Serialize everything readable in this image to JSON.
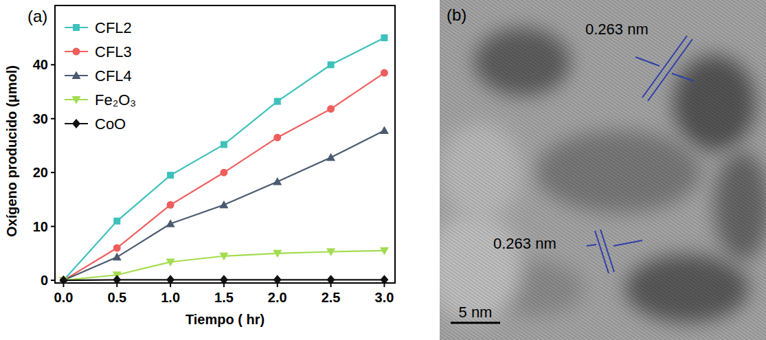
{
  "chart_data": {
    "type": "line",
    "label": "(a)",
    "x_label": "Tiempo ( hr)",
    "y_label": "Oxígeno producido (μmol)",
    "x": [
      0,
      0.5,
      1,
      1.5,
      2,
      2.5,
      3
    ],
    "series": [
      {
        "name": "CFL2",
        "color": "#3ec1bb",
        "marker": "square",
        "values": [
          0,
          11,
          19.5,
          25.2,
          33.2,
          40,
          45
        ]
      },
      {
        "name": "CFL3",
        "color": "#ef5d5d",
        "marker": "circle",
        "values": [
          0,
          6,
          14,
          20,
          26.5,
          31.8,
          38.5
        ]
      },
      {
        "name": "CFL4",
        "color": "#4b5a6f",
        "marker": "triangle-up",
        "values": [
          0,
          4.3,
          10.5,
          14,
          18.3,
          22.8,
          27.8
        ]
      },
      {
        "name": "Fe₂O₃",
        "color": "#a3dc4e",
        "marker": "triangle-down",
        "values": [
          0,
          1,
          3.4,
          4.5,
          5,
          5.3,
          5.5
        ]
      },
      {
        "name": "CoO",
        "color": "#111111",
        "marker": "diamond",
        "values": [
          0,
          0.1,
          0.1,
          0.1,
          0.1,
          0.1,
          0.1
        ]
      }
    ],
    "xlim": [
      -0.08,
      3.1
    ],
    "xticks": [
      {
        "value": 0,
        "label": "0.0"
      },
      {
        "value": 0.5,
        "label": "0.5"
      },
      {
        "value": 1,
        "label": "1.0"
      },
      {
        "value": 1.5,
        "label": "1.5"
      },
      {
        "value": 2,
        "label": "2.0"
      },
      {
        "value": 2.5,
        "label": "2.5"
      },
      {
        "value": 3,
        "label": "3.0"
      }
    ],
    "ylim": [
      -0.5,
      51
    ],
    "yticks": [
      0,
      10,
      20,
      30,
      40
    ],
    "grid": false,
    "legend": "upper left"
  },
  "micrograph": {
    "label": "(b)",
    "annotations": [
      "0.263 nm",
      "0.263 nm"
    ],
    "scale_bar": "5 nm"
  }
}
